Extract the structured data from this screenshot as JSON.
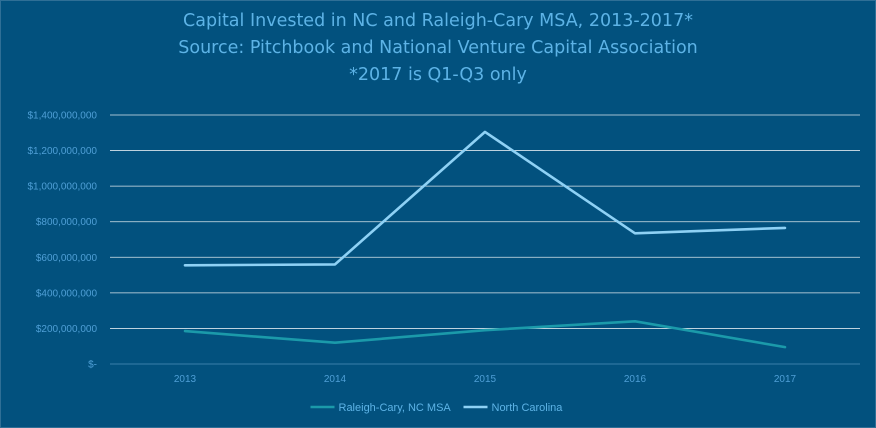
{
  "chart_data": {
    "type": "line",
    "title": [
      "Capital Invested in NC and Raleigh-Cary MSA, 2013-2017*",
      "Source: Pitchbook and National Venture Capital Association",
      "*2017 is Q1-Q3 only"
    ],
    "categories": [
      "2013",
      "2014",
      "2015",
      "2016",
      "2017"
    ],
    "ylim": [
      0,
      1400000000
    ],
    "yticks": [
      0,
      200000000,
      400000000,
      600000000,
      800000000,
      1000000000,
      1200000000,
      1400000000
    ],
    "ytick_labels": [
      "$-",
      "$200,000,000",
      "$400,000,000",
      "$600,000,000",
      "$800,000,000",
      "$1,000,000,000",
      "$1,200,000,000",
      "$1,400,000,000"
    ],
    "grid": true,
    "legend_position": "bottom",
    "series": [
      {
        "name": "Raleigh-Cary, NC MSA",
        "color": "#1b9aaa",
        "values": [
          185000000,
          120000000,
          190000000,
          240000000,
          95000000
        ]
      },
      {
        "name": "North Carolina",
        "color": "#8ed1f5",
        "values": [
          555000000,
          560000000,
          1305000000,
          735000000,
          765000000
        ]
      }
    ]
  },
  "colors": {
    "background": "#02517e",
    "grid": "#ffffff",
    "text": "#5db3e6"
  }
}
